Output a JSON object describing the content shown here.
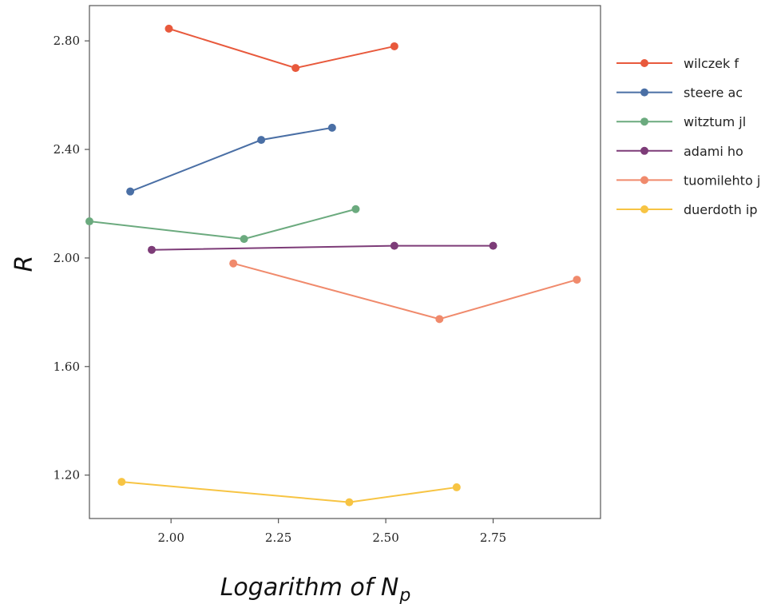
{
  "chart_data": {
    "type": "line",
    "xlabel": "Logarithm of N",
    "xlabel_sub": "p",
    "ylabel": "R",
    "xlim": [
      1.81,
      3.0
    ],
    "ylim": [
      1.04,
      2.93
    ],
    "xticks": [
      2.0,
      2.25,
      2.5,
      2.75
    ],
    "xtick_labels": [
      "2.00",
      "2.25",
      "2.50",
      "2.75"
    ],
    "yticks": [
      1.2,
      1.6,
      2.0,
      2.4,
      2.8
    ],
    "ytick_labels": [
      "1.20",
      "1.60",
      "2.00",
      "2.40",
      "2.80"
    ],
    "grid": false,
    "legend_position": "right",
    "series": [
      {
        "name": "wilczek f",
        "color": "#E8593C",
        "x": [
          1.995,
          2.29,
          2.52
        ],
        "y": [
          2.845,
          2.7,
          2.78
        ]
      },
      {
        "name": "steere ac",
        "color": "#4A6FA5",
        "x": [
          1.905,
          2.21,
          2.375
        ],
        "y": [
          2.245,
          2.435,
          2.48
        ]
      },
      {
        "name": "witztum jl",
        "color": "#6BAA7E",
        "x": [
          1.81,
          2.17,
          2.43
        ],
        "y": [
          2.135,
          2.07,
          2.18
        ]
      },
      {
        "name": "adami ho",
        "color": "#7D3C78",
        "x": [
          1.955,
          2.52,
          2.75
        ],
        "y": [
          2.03,
          2.045,
          2.045
        ]
      },
      {
        "name": "tuomilehto j",
        "color": "#F08A6C",
        "x": [
          2.145,
          2.625,
          2.945
        ],
        "y": [
          1.98,
          1.775,
          1.92
        ]
      },
      {
        "name": "duerdoth ip",
        "color": "#F7C443",
        "x": [
          1.885,
          2.415,
          2.665
        ],
        "y": [
          1.175,
          1.1,
          1.155
        ]
      }
    ]
  }
}
